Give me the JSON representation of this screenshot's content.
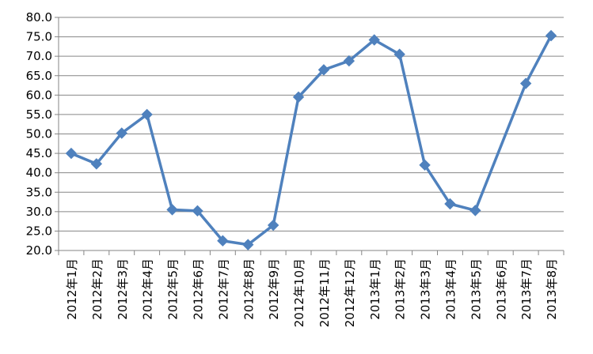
{
  "chart_data": {
    "type": "line",
    "title": "",
    "xlabel": "",
    "ylabel": "",
    "ylim": [
      20,
      80
    ],
    "yticks": [
      "20.0",
      "25.0",
      "30.0",
      "35.0",
      "40.0",
      "45.0",
      "50.0",
      "55.0",
      "60.0",
      "65.0",
      "70.0",
      "75.0",
      "80.0"
    ],
    "grid": true,
    "legend": "none",
    "categories": [
      "2012年1月",
      "2012年2月",
      "2012年3月",
      "2012年4月",
      "2012年5月",
      "2012年6月",
      "2012年7月",
      "2012年8月",
      "2012年9月",
      "2012年10月",
      "2012年11月",
      "2012年12月",
      "2013年1月",
      "2013年2月",
      "2013年3月",
      "2013年4月",
      "2013年5月",
      "2013年6月",
      "2013年7月",
      "2013年8月"
    ],
    "series": [
      {
        "values": [
          45.0,
          42.3,
          50.2,
          55.0,
          30.5,
          30.2,
          22.5,
          21.5,
          26.5,
          59.5,
          66.5,
          68.8,
          74.2,
          70.5,
          42.0,
          32.0,
          30.3,
          null,
          63.0,
          75.3
        ],
        "color": "#4F81BD",
        "marker": "diamond"
      }
    ]
  }
}
